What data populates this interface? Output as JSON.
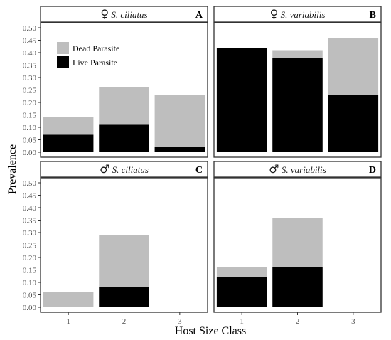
{
  "colors": {
    "dead": "#bebebe",
    "live": "#000000",
    "frame": "#333333",
    "strip_fill": "#ffffff"
  },
  "chart_data": {
    "type": "bar",
    "stacked": true,
    "xlabel": "Host Size Class",
    "ylabel": "Prevalence",
    "ylim": [
      0,
      0.5
    ],
    "y_ticks": [
      "0.00",
      "0.05",
      "0.10",
      "0.15",
      "0.20",
      "0.25",
      "0.30",
      "0.35",
      "0.40",
      "0.45",
      "0.50"
    ],
    "categories": [
      "1",
      "2",
      "3"
    ],
    "grid": false,
    "legend": {
      "placement": "top-left of panel A",
      "entries": [
        "Dead Parasite",
        "Live Parasite"
      ]
    },
    "panels": [
      {
        "letter": "A",
        "sex_symbol": "♀",
        "species": "S. ciliatus",
        "live": [
          0.07,
          0.11,
          0.02
        ],
        "total": [
          0.14,
          0.26,
          0.23
        ]
      },
      {
        "letter": "B",
        "sex_symbol": "♀",
        "species": "S. variabilis",
        "live": [
          0.42,
          0.38,
          0.23
        ],
        "total": [
          0.42,
          0.41,
          0.46
        ]
      },
      {
        "letter": "C",
        "sex_symbol": "♂",
        "species": "S. ciliatus",
        "live": [
          0.0,
          0.08,
          null
        ],
        "total": [
          0.06,
          0.29,
          null
        ]
      },
      {
        "letter": "D",
        "sex_symbol": "♂",
        "species": "S. variabilis",
        "live": [
          0.12,
          0.16,
          null
        ],
        "total": [
          0.16,
          0.36,
          null
        ]
      }
    ]
  }
}
